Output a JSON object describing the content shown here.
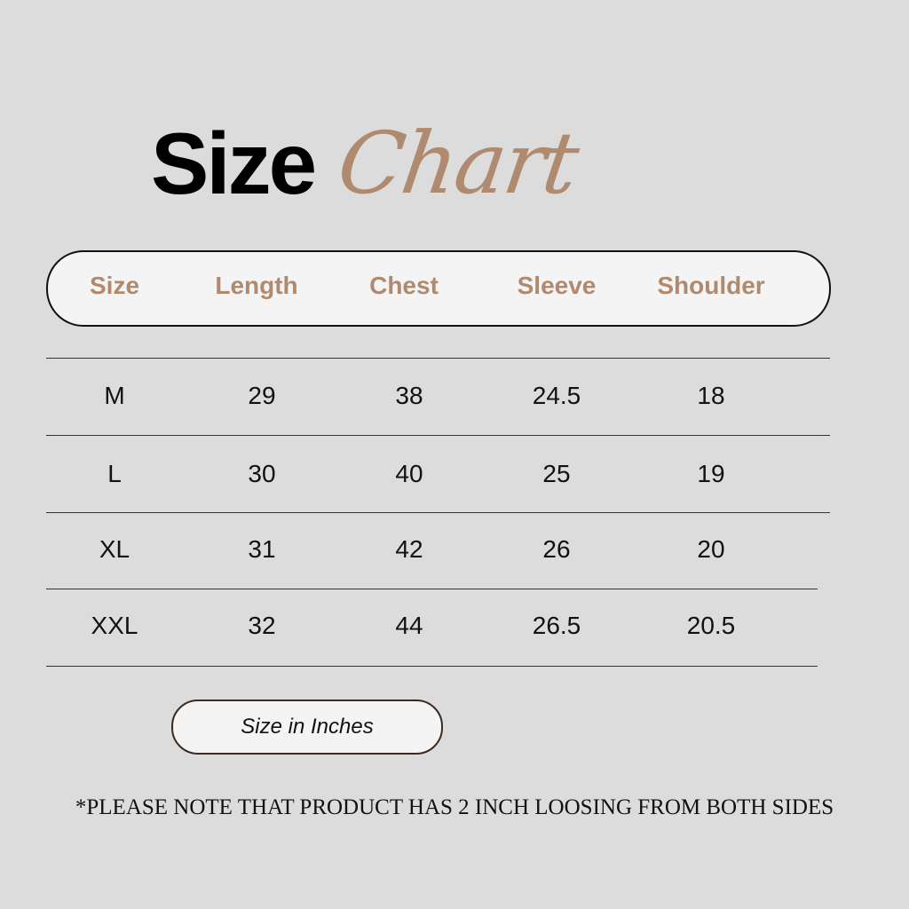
{
  "title": {
    "part1": "Size",
    "part2": "Chart"
  },
  "colors": {
    "accent": "#b08a6e",
    "background": "#dcdcdc",
    "pill": "#f4f4f4"
  },
  "table": {
    "headers": [
      "Size",
      "Length",
      "Chest",
      "Sleeve",
      "Shoulder"
    ],
    "rows": [
      [
        "M",
        "29",
        "38",
        "24.5",
        "18"
      ],
      [
        "L",
        "30",
        "40",
        "25",
        "19"
      ],
      [
        "XL",
        "31",
        "42",
        "26",
        "20"
      ],
      [
        "XXL",
        "32",
        "44",
        "26.5",
        "20.5"
      ]
    ]
  },
  "unit_label": "Size in Inches",
  "footnote": "*PLEASE NOTE THAT PRODUCT HAS 2 INCH LOOSING FROM BOTH SIDES"
}
